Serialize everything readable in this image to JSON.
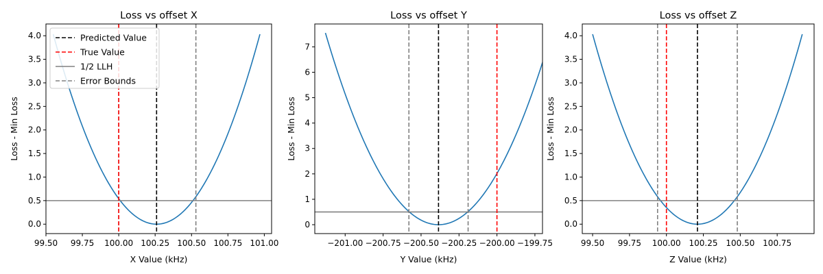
{
  "chart_data": [
    {
      "type": "line",
      "title": "Loss vs offset X",
      "xlabel": "X Value (kHz)",
      "ylabel": "Loss - Min Loss",
      "xlim": [
        99.5,
        101.05
      ],
      "ylim": [
        -0.2,
        4.25
      ],
      "xticks": [
        99.5,
        99.75,
        100.0,
        100.25,
        100.5,
        100.75,
        101.0
      ],
      "xtick_labels": [
        "99.50",
        "99.75",
        "100.00",
        "100.25",
        "100.50",
        "100.75",
        "101.00"
      ],
      "yticks": [
        0.0,
        0.5,
        1.0,
        1.5,
        2.0,
        2.5,
        3.0,
        3.5,
        4.0
      ],
      "ytick_labels": [
        "0.0",
        "0.5",
        "1.0",
        "1.5",
        "2.0",
        "2.5",
        "3.0",
        "3.5",
        "4.0"
      ],
      "curve": {
        "center": 100.26,
        "coef": 8.0,
        "x_start": 99.55,
        "x_end": 100.97
      },
      "predicted_value": 100.26,
      "true_value": 100.0,
      "half_llh": 0.5,
      "error_bounds": [
        100.0,
        100.53
      ],
      "legend": {
        "placement": "top-left",
        "entries": [
          "Predicted Value",
          "True Value",
          "1/2 LLH",
          "Error Bounds"
        ]
      }
    },
    {
      "type": "line",
      "title": "Loss vs offset Y",
      "xlabel": "Y Value (kHz)",
      "ylabel": "Loss - Min Loss",
      "xlim": [
        -201.2,
        -199.7
      ],
      "ylim": [
        -0.35,
        7.9
      ],
      "xticks": [
        -201.0,
        -200.75,
        -200.5,
        -200.25,
        -200.0,
        -199.75
      ],
      "xtick_labels": [
        "−201.00",
        "−200.75",
        "−200.50",
        "−200.25",
        "−200.00",
        "−199.75"
      ],
      "yticks": [
        0,
        1,
        2,
        3,
        4,
        5,
        6,
        7
      ],
      "ytick_labels": [
        "0",
        "1",
        "2",
        "3",
        "4",
        "5",
        "6",
        "7"
      ],
      "curve": {
        "center": -200.385,
        "coef": 13.6,
        "x_start": -201.13,
        "x_end": -199.64
      },
      "predicted_value": -200.385,
      "true_value": -200.0,
      "half_llh": 0.5,
      "error_bounds": [
        -200.58,
        -200.19
      ]
    },
    {
      "type": "line",
      "title": "Loss vs offset Z",
      "xlabel": "Z Value (kHz)",
      "ylabel": "Loss - Min Loss",
      "xlim": [
        99.43,
        101.0
      ],
      "ylim": [
        -0.2,
        4.25
      ],
      "xticks": [
        99.5,
        99.75,
        100.0,
        100.25,
        100.5,
        100.75
      ],
      "xtick_labels": [
        "99.50",
        "99.75",
        "100.00",
        "100.25",
        "100.50",
        "100.75"
      ],
      "yticks": [
        0.0,
        0.5,
        1.0,
        1.5,
        2.0,
        2.5,
        3.0,
        3.5,
        4.0
      ],
      "ytick_labels": [
        "0.0",
        "0.5",
        "1.0",
        "1.5",
        "2.0",
        "2.5",
        "3.0",
        "3.5",
        "4.0"
      ],
      "curve": {
        "center": 100.21,
        "coef": 8.0,
        "x_start": 99.5,
        "x_end": 100.92
      },
      "predicted_value": 100.21,
      "true_value": 100.0,
      "half_llh": 0.5,
      "error_bounds": [
        99.94,
        100.48
      ]
    }
  ],
  "colors": {
    "curve": "#1f77b4",
    "predicted": "#000000",
    "true": "#ff0000",
    "llh": "#808080",
    "bounds": "#808080"
  }
}
